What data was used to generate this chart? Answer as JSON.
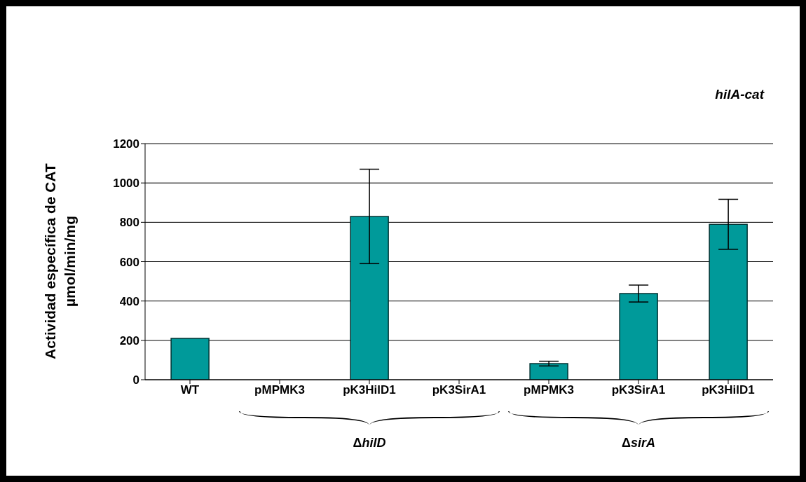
{
  "chart_data": {
    "type": "bar",
    "title": "hilA-cat",
    "ylabel": "Actividad específica de CAT\nµmol/min/mg",
    "categories": [
      "WT",
      "pMPMK3",
      "pK3HilD1",
      "pK3SirA1",
      "pMPMK3",
      "pK3SirA1",
      "pK3HilD1"
    ],
    "values": [
      210,
      0,
      830,
      0,
      82,
      438,
      790
    ],
    "errors": [
      null,
      null,
      240,
      null,
      12,
      43,
      127
    ],
    "color": "#009a9a",
    "ylim": [
      0,
      1200
    ],
    "yticks": [
      0,
      200,
      400,
      600,
      800,
      1000,
      1200
    ],
    "grid": "y",
    "legend": false,
    "annotations": [
      "ΔhilD",
      "ΔsirA"
    ]
  }
}
